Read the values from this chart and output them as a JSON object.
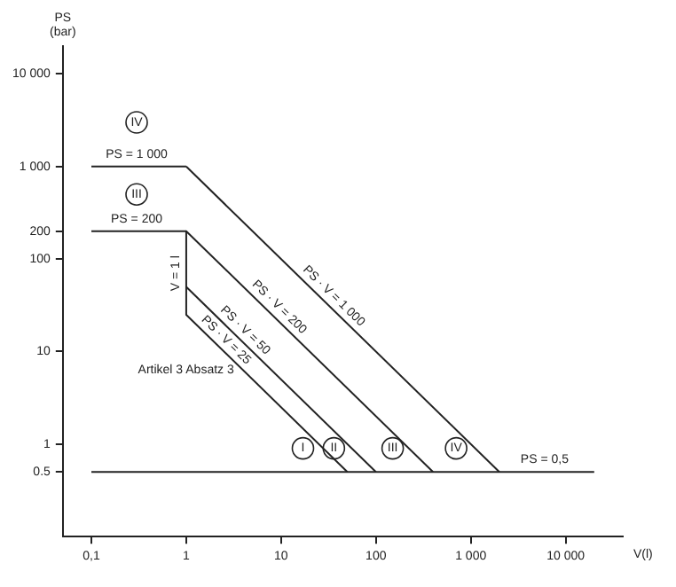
{
  "chart_data": {
    "type": "line",
    "xlabel": "V(l)",
    "ylabel": "PS (bar)",
    "log": "xy",
    "grid": false,
    "legend": false,
    "marker": "none",
    "line_style": "solid",
    "xlim": [
      0.05,
      40000
    ],
    "ylim": [
      0.1,
      20000
    ],
    "xticks": [
      {
        "value": 0.1,
        "label": "0,1"
      },
      1,
      10,
      100,
      {
        "value": 1000,
        "label": "1 000"
      },
      {
        "value": 10000,
        "label": "10 000"
      }
    ],
    "yticks": [
      {
        "value": 0.5,
        "label": "0.5"
      },
      1,
      10,
      100,
      200,
      {
        "value": 1000,
        "label": "1 000"
      },
      {
        "value": 10000,
        "label": "10 000"
      }
    ],
    "series": [
      {
        "color": "#222222",
        "x": [
          0.1,
          1
        ],
        "values": [
          1000,
          1000
        ]
      },
      {
        "color": "#222222",
        "x": [
          1,
          2000
        ],
        "values": [
          1000,
          0.5
        ]
      },
      {
        "color": "#222222",
        "x": [
          0.1,
          1
        ],
        "values": [
          200,
          200
        ]
      },
      {
        "color": "#222222",
        "x": [
          1,
          400
        ],
        "values": [
          200,
          0.5
        ]
      },
      {
        "color": "#222222",
        "x": [
          1,
          1
        ],
        "values": [
          200,
          25
        ]
      },
      {
        "color": "#222222",
        "x": [
          1,
          100
        ],
        "values": [
          50,
          0.5
        ]
      },
      {
        "color": "#222222",
        "x": [
          1,
          50
        ],
        "values": [
          25,
          0.5
        ]
      },
      {
        "color": "#222222",
        "x": [
          0.1,
          20000
        ],
        "values": [
          0.5,
          0.5
        ]
      }
    ],
    "annotations": [
      {
        "text": "IV",
        "x": 0.3,
        "y": 3000
      },
      {
        "text": "PS = 1 000",
        "x": 0.3,
        "y": 1000
      },
      {
        "text": "III",
        "x": 0.3,
        "y": 500
      },
      {
        "text": "PS = 200",
        "x": 0.3,
        "y": 200
      },
      {
        "text": "V = 1 l",
        "x": 1,
        "y": 70
      },
      {
        "text": "PS · V = 1 000",
        "x": 30,
        "y": 33
      },
      {
        "text": "PS · V = 200",
        "x": 8,
        "y": 25
      },
      {
        "text": "PS · V = 50",
        "x": 3.5,
        "y": 14
      },
      {
        "text": "PS · V = 25",
        "x": 2.2,
        "y": 11
      },
      {
        "text": "I",
        "x": 17,
        "y": 0.9
      },
      {
        "text": "II",
        "x": 36,
        "y": 0.9
      },
      {
        "text": "III",
        "x": 150,
        "y": 0.9
      },
      {
        "text": "IV",
        "x": 700,
        "y": 0.9
      },
      {
        "text": "PS = 0,5",
        "x": 6000,
        "y": 0.5
      },
      "Artikel 3 Absatz 3"
    ]
  }
}
